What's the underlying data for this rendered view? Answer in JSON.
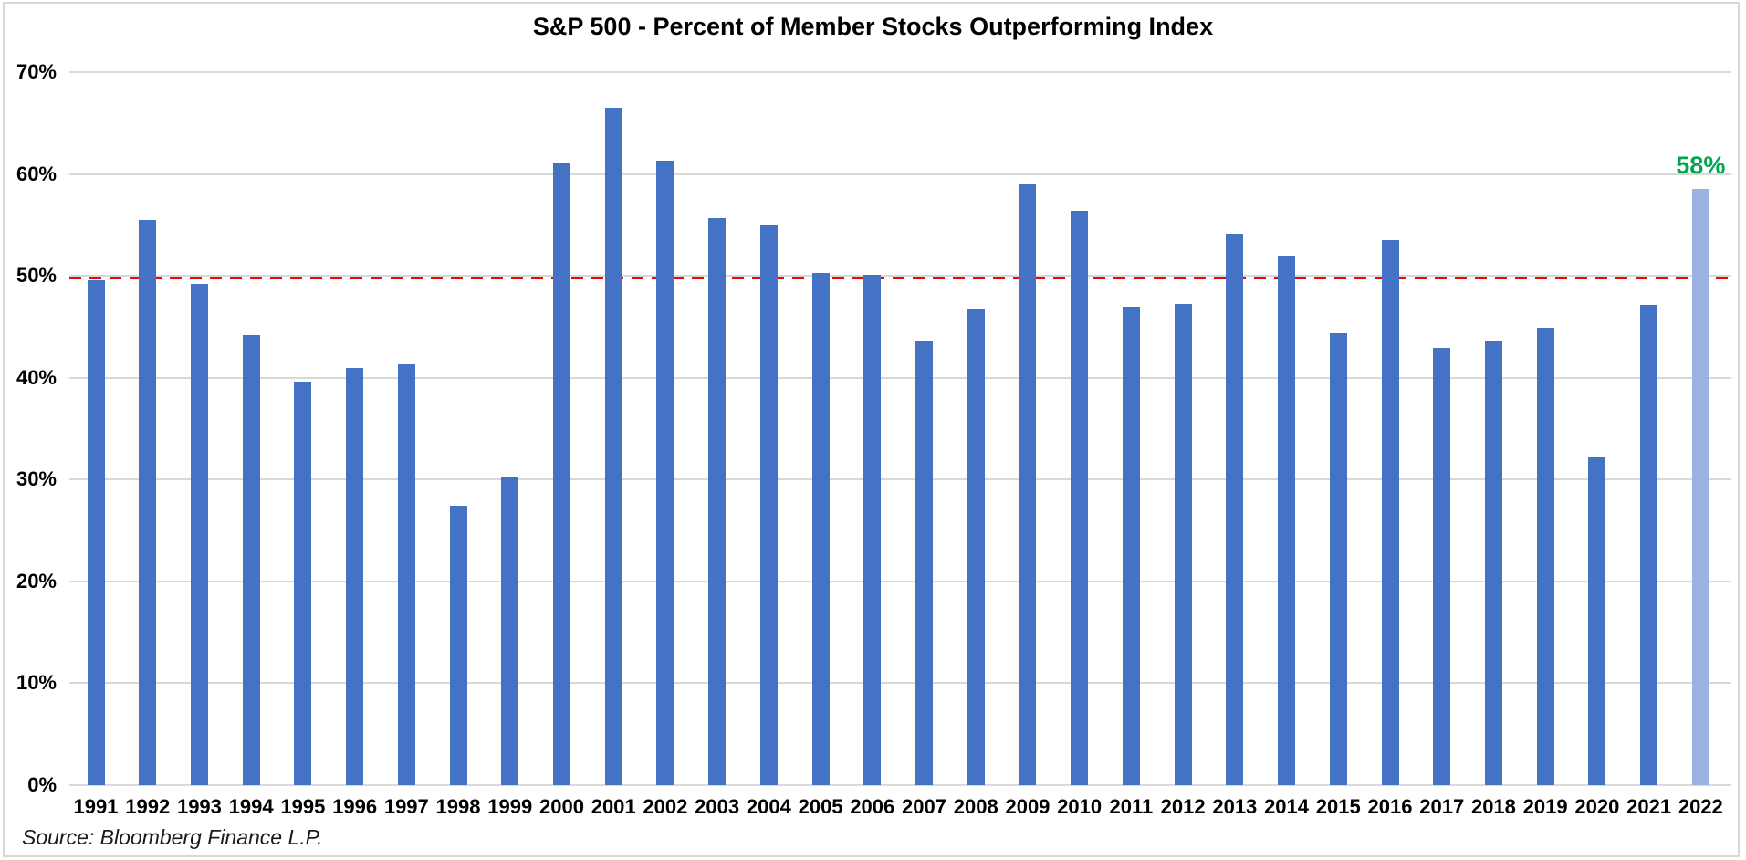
{
  "title": "S&P 500 - Percent of Member Stocks Outperforming Index",
  "source_note": "Source: Bloomberg Finance L.P.",
  "colors": {
    "bar": "#4472C4",
    "highlight_bar": "#9AB3E0",
    "annotation_green": "#00A651",
    "reference_red": "#FF0000",
    "gridline": "#D9D9D9",
    "text": "#000000"
  },
  "chart_data": {
    "type": "bar",
    "title": "S&P 500 - Percent of Member Stocks Outperforming Index",
    "categories": [
      "1991",
      "1992",
      "1993",
      "1994",
      "1995",
      "1996",
      "1997",
      "1998",
      "1999",
      "2000",
      "2001",
      "2002",
      "2003",
      "2004",
      "2005",
      "2006",
      "2007",
      "2008",
      "2009",
      "2010",
      "2011",
      "2012",
      "2013",
      "2014",
      "2015",
      "2016",
      "2017",
      "2018",
      "2019",
      "2020",
      "2021",
      "2022"
    ],
    "values": [
      49.6,
      55.5,
      49.2,
      44.2,
      39.6,
      41.0,
      41.3,
      27.4,
      30.2,
      61.0,
      66.5,
      61.3,
      55.7,
      55.0,
      50.3,
      50.1,
      43.6,
      46.7,
      59.0,
      56.4,
      47.0,
      47.2,
      54.1,
      52.0,
      44.4,
      53.5,
      42.9,
      43.6,
      44.9,
      32.2,
      47.1,
      58.5
    ],
    "unit": "%",
    "ylim": [
      0,
      70
    ],
    "yticks": [
      {
        "value": 0,
        "label": "0%"
      },
      {
        "value": 10,
        "label": "10%"
      },
      {
        "value": 20,
        "label": "20%"
      },
      {
        "value": 30,
        "label": "30%"
      },
      {
        "value": 40,
        "label": "40%"
      },
      {
        "value": 50,
        "label": "50%"
      },
      {
        "value": 60,
        "label": "60%"
      },
      {
        "value": 70,
        "label": "70%"
      }
    ],
    "grid": true,
    "legend": false,
    "reference_line": {
      "value": 50,
      "style": "dashed",
      "color": "#FF0000"
    },
    "highlight": {
      "category": "2022",
      "index": 31,
      "data_label": "58%",
      "label_color": "#00A651",
      "bar_color": "#9AB3E0"
    },
    "bar_color": "#4472C4"
  }
}
